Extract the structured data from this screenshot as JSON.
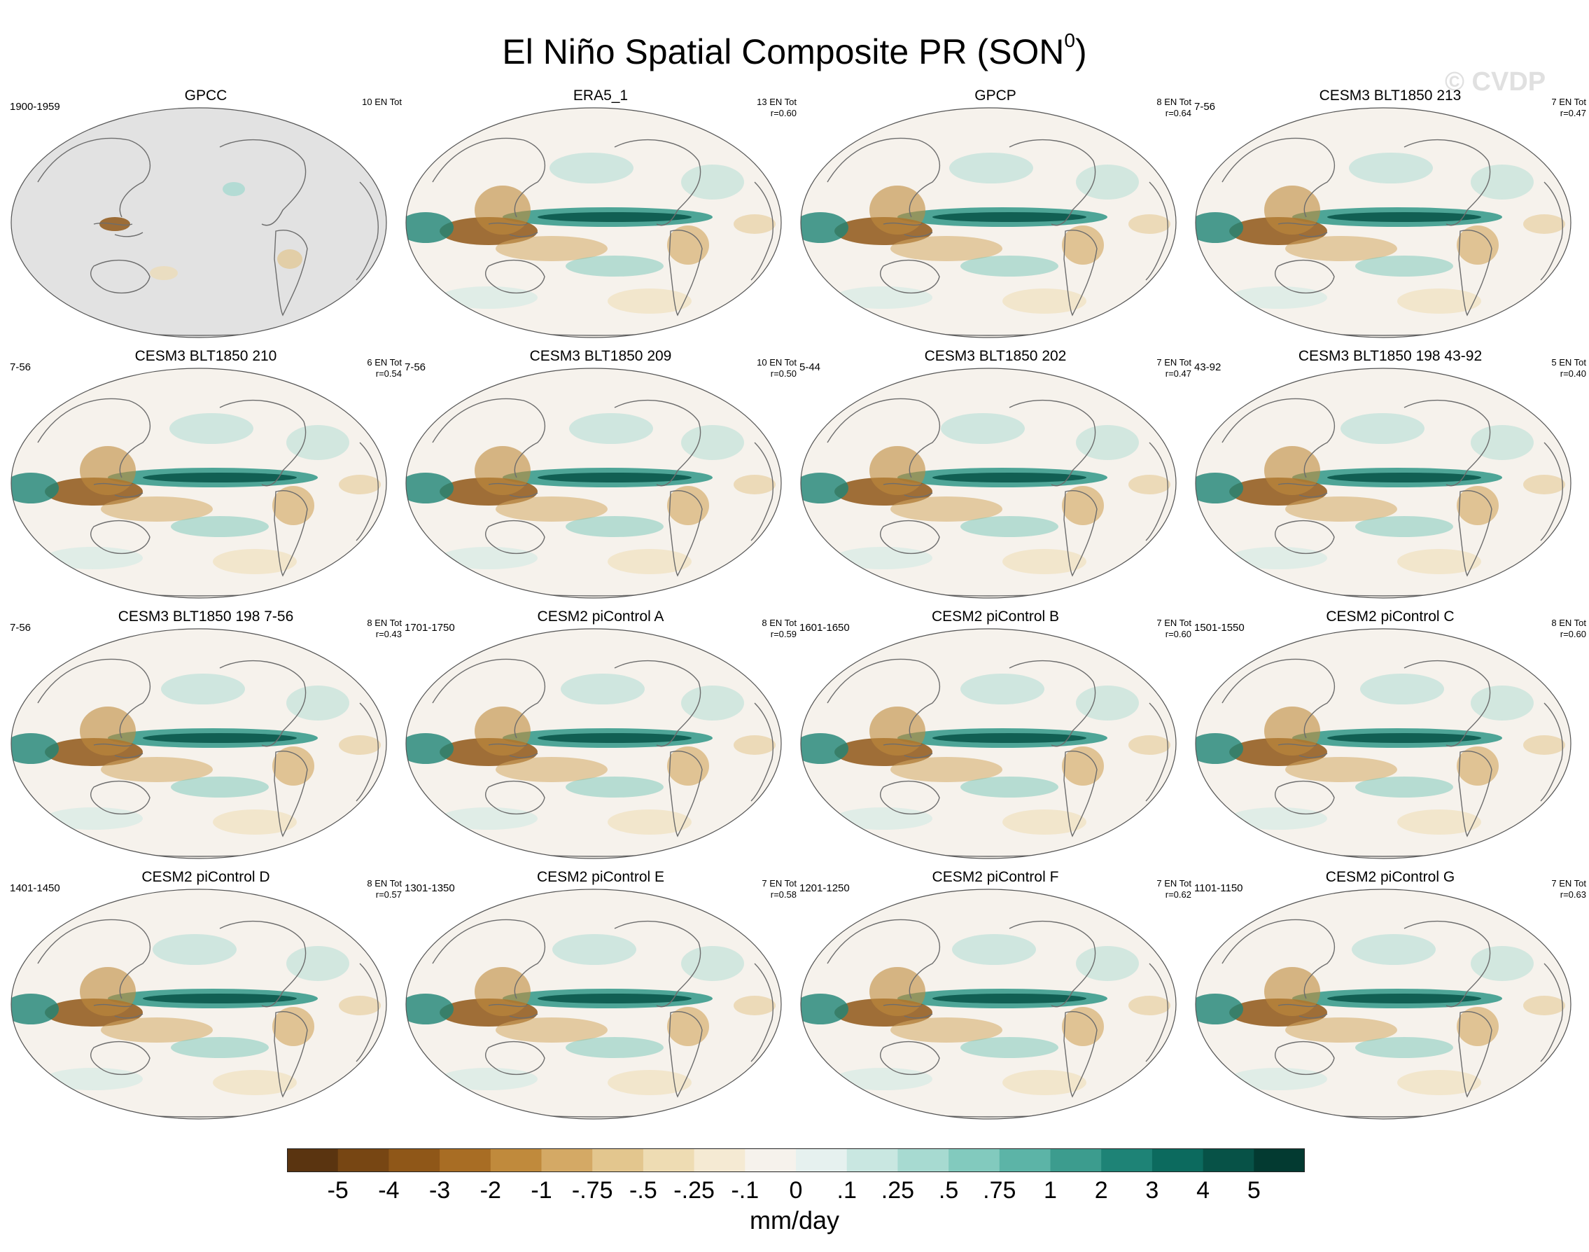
{
  "title": "El Niño Spatial Composite PR (SON",
  "title_superscript": "0",
  "title_close": ")",
  "watermark": "© CVDP",
  "chart_data": {
    "type": "heatmap",
    "title": "El Niño Spatial Composite PR (SON0)",
    "units": "mm/day",
    "projection": "Robinson global map, Pacific-centered",
    "panels": [
      {
        "name": "GPCC",
        "period": "1900-1959",
        "events": "10 EN Tot",
        "r": "",
        "land_only": true
      },
      {
        "name": "ERA5_1",
        "period": "",
        "events": "13 EN Tot",
        "r": "r=0.60",
        "land_only": false
      },
      {
        "name": "GPCP",
        "period": "",
        "events": "8 EN Tot",
        "r": "r=0.64",
        "land_only": false
      },
      {
        "name": "CESM3 BLT1850 213",
        "period": "7-56",
        "events": "7 EN Tot",
        "r": "r=0.47",
        "land_only": false
      },
      {
        "name": "CESM3 BLT1850 210",
        "period": "7-56",
        "events": "6 EN Tot",
        "r": "r=0.54",
        "land_only": false
      },
      {
        "name": "CESM3 BLT1850 209",
        "period": "7-56",
        "events": "10 EN Tot",
        "r": "r=0.50",
        "land_only": false
      },
      {
        "name": "CESM3 BLT1850 202",
        "period": "5-44",
        "events": "7 EN Tot",
        "r": "r=0.47",
        "land_only": false
      },
      {
        "name": "CESM3 BLT1850 198 43-92",
        "period": "43-92",
        "events": "5 EN Tot",
        "r": "r=0.40",
        "land_only": false
      },
      {
        "name": "CESM3 BLT1850 198 7-56",
        "period": "7-56",
        "events": "8 EN Tot",
        "r": "r=0.43",
        "land_only": false
      },
      {
        "name": "CESM2 piControl A",
        "period": "1701-1750",
        "events": "8 EN Tot",
        "r": "r=0.59",
        "land_only": false
      },
      {
        "name": "CESM2 piControl B",
        "period": "1601-1650",
        "events": "7 EN Tot",
        "r": "r=0.60",
        "land_only": false
      },
      {
        "name": "CESM2 piControl C",
        "period": "1501-1550",
        "events": "8 EN Tot",
        "r": "r=0.60",
        "land_only": false
      },
      {
        "name": "CESM2 piControl D",
        "period": "1401-1450",
        "events": "8 EN Tot",
        "r": "r=0.57",
        "land_only": false
      },
      {
        "name": "CESM2 piControl E",
        "period": "1301-1350",
        "events": "7 EN Tot",
        "r": "r=0.58",
        "land_only": false
      },
      {
        "name": "CESM2 piControl F",
        "period": "1201-1250",
        "events": "7 EN Tot",
        "r": "r=0.62",
        "land_only": false
      },
      {
        "name": "CESM2 piControl G",
        "period": "1101-1150",
        "events": "7 EN Tot",
        "r": "r=0.63",
        "land_only": false
      }
    ],
    "colorbar": {
      "labels": [
        "-5",
        "-4",
        "-3",
        "-2",
        "-1",
        "-.75",
        "-.5",
        "-.25",
        "-.1",
        "0",
        ".1",
        ".25",
        ".5",
        ".75",
        "1",
        "2",
        "3",
        "4",
        "5"
      ],
      "colors": [
        "#5a3410",
        "#774613",
        "#8f5718",
        "#a86d24",
        "#c08a3c",
        "#d4a965",
        "#e3c68e",
        "#eedcb3",
        "#f5ead3",
        "#f6f2ec",
        "#e6f1ef",
        "#c9e7e1",
        "#a7dad1",
        "#82cabe",
        "#5cb4a7",
        "#3c9c8e",
        "#1e8376",
        "#0c6a5e",
        "#075247",
        "#033a31"
      ],
      "units": "mm/day"
    }
  }
}
